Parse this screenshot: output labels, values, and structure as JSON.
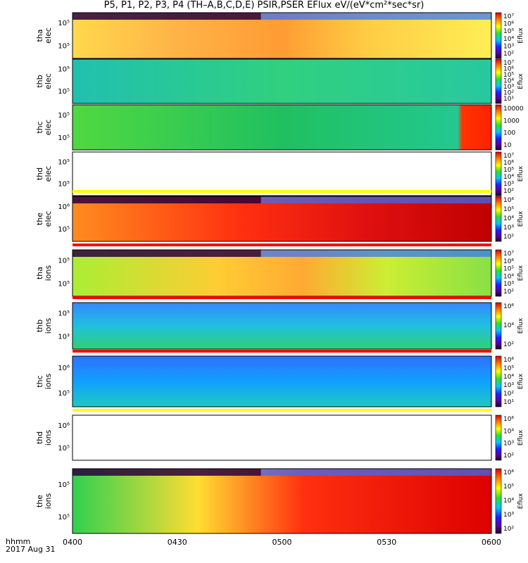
{
  "title": "P5, P1, P2, P3, P4 (TH–A,B,C,D,E) PSIR,PSER EFlux eV/(eV*cm²*sec*sr)",
  "colors": {
    "high": "#d40000",
    "mid": "#33cc33",
    "low": "#3366ff",
    "bg": "#ffffff"
  },
  "x_axis": {
    "label_line1": "hhmm",
    "label_line2": "2017 Aug 31",
    "ticks": [
      "0400",
      "0430",
      "0500",
      "0530",
      "0600"
    ]
  },
  "chart_data": [
    {
      "type": "heatmap",
      "name_top": "tha",
      "name_bottom": "elec",
      "yticks": [
        "10⁵",
        "10⁵"
      ],
      "cbar_label": "Eflux",
      "cbar_ticks": [
        "10⁷",
        "10⁶",
        "10⁵",
        "10⁴",
        "10³",
        "10²"
      ]
    },
    {
      "type": "heatmap",
      "name_top": "thb",
      "name_bottom": "elec",
      "yticks": [
        "10⁵",
        "10⁵"
      ],
      "cbar_label": "Eflux",
      "cbar_ticks": [
        "10⁷",
        "10⁶",
        "10⁵",
        "10⁴",
        "10³",
        "10²",
        "10¹"
      ]
    },
    {
      "type": "heatmap",
      "name_top": "thc",
      "name_bottom": "elec",
      "yticks": [
        "10⁵",
        "10⁵"
      ],
      "cbar_label": "",
      "cbar_ticks": [
        "10000",
        "1000",
        "100",
        "10"
      ]
    },
    {
      "type": "heatmap",
      "name_top": "thd",
      "name_bottom": "elec",
      "yticks": [
        "10⁵",
        "10⁵"
      ],
      "cbar_label": "Eflux",
      "cbar_ticks": [
        "10⁷",
        "10⁶",
        "10⁵",
        "10⁴",
        "10³",
        "10²"
      ]
    },
    {
      "type": "heatmap",
      "name_top": "the",
      "name_bottom": "elec",
      "yticks": [
        "10⁶",
        "10⁵"
      ],
      "cbar_label": "Eflux",
      "cbar_ticks": [
        "10⁶",
        "10⁵",
        "10⁴",
        "10³",
        "10²"
      ]
    },
    {
      "type": "heatmap",
      "name_top": "tha",
      "name_bottom": "ions",
      "yticks": [
        "10⁵",
        "10⁵"
      ],
      "cbar_label": "Eflux",
      "cbar_ticks": [
        "10⁷",
        "10⁶",
        "10⁵",
        "10⁴",
        "10³",
        "10²"
      ]
    },
    {
      "type": "heatmap",
      "name_top": "thb",
      "name_bottom": "ions",
      "yticks": [
        "10⁵",
        "10³"
      ],
      "cbar_label": "Eflux",
      "cbar_ticks": [
        "10⁶",
        "10⁴",
        "10²"
      ]
    },
    {
      "type": "heatmap",
      "name_top": "thc",
      "name_bottom": "ions",
      "yticks": [
        "10⁶",
        "10⁵"
      ],
      "cbar_label": "Eflux",
      "cbar_ticks": [
        "10⁶",
        "10⁵",
        "10⁴",
        "10³",
        "10²",
        "10¹"
      ]
    },
    {
      "type": "heatmap",
      "name_top": "thd",
      "name_bottom": "ions",
      "yticks": [
        "10⁶",
        "10⁵"
      ],
      "cbar_label": "Eflux",
      "cbar_ticks": [
        "10⁶",
        "10⁴",
        "10³",
        "10²"
      ]
    },
    {
      "type": "heatmap",
      "name_top": "the",
      "name_bottom": "ions",
      "yticks": [
        "10⁵",
        "10⁵"
      ],
      "cbar_label": "Eflux",
      "cbar_ticks": [
        "10⁶",
        "10⁵",
        "10⁴",
        "10³",
        "10²"
      ]
    }
  ]
}
